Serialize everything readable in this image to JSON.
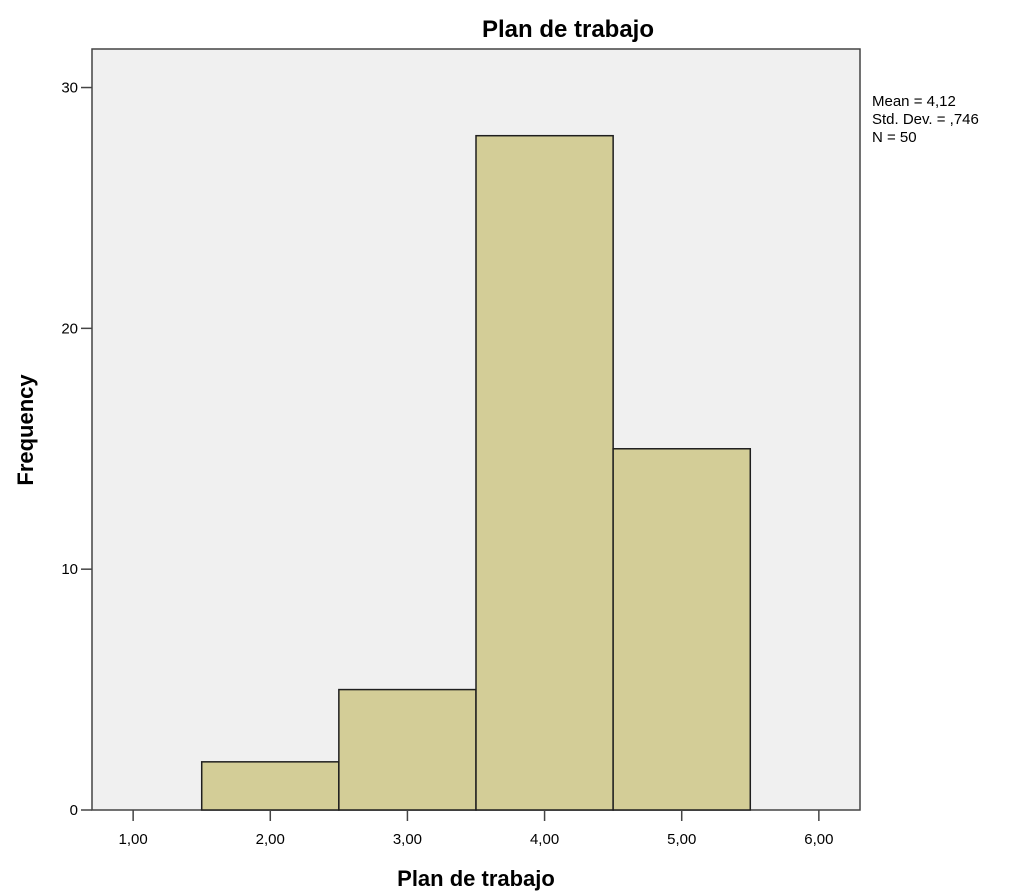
{
  "chart_data": {
    "type": "bar",
    "title": "Plan de trabajo",
    "xlabel": "Plan de trabajo",
    "ylabel": "Frequency",
    "bins": [
      {
        "x_start": 1.5,
        "x_end": 2.5,
        "value": 2
      },
      {
        "x_start": 2.5,
        "x_end": 3.5,
        "value": 5
      },
      {
        "x_start": 3.5,
        "x_end": 4.5,
        "value": 28
      },
      {
        "x_start": 4.5,
        "x_end": 5.5,
        "value": 15
      }
    ],
    "xticks": [
      {
        "value": 1,
        "label": "1,00"
      },
      {
        "value": 2,
        "label": "2,00"
      },
      {
        "value": 3,
        "label": "3,00"
      },
      {
        "value": 4,
        "label": "4,00"
      },
      {
        "value": 5,
        "label": "5,00"
      },
      {
        "value": 6,
        "label": "6,00"
      }
    ],
    "yticks": [
      {
        "value": 0,
        "label": "0"
      },
      {
        "value": 10,
        "label": "10"
      },
      {
        "value": 20,
        "label": "20"
      },
      {
        "value": 30,
        "label": "30"
      }
    ],
    "xlim": [
      0.7,
      6.3
    ],
    "ylim": [
      0,
      31.6
    ],
    "grid": false,
    "stats": {
      "mean": "Mean = 4,12",
      "std_dev": "Std. Dev. = ,746",
      "n": "N = 50"
    },
    "colors": {
      "bar_fill": "#d3cd97",
      "bar_stroke": "#1f1f1f",
      "plot_background": "#f0f0f0",
      "frame": "#444444"
    }
  }
}
